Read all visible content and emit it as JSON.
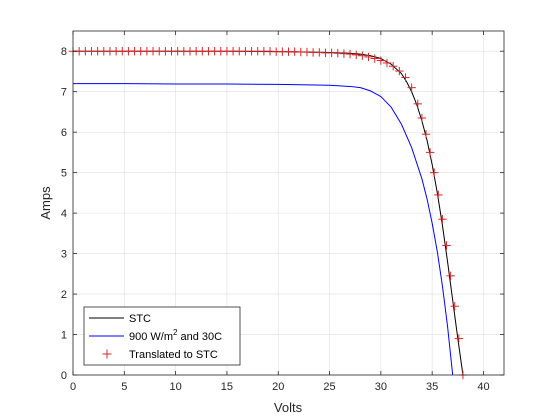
{
  "chart_data": {
    "type": "line",
    "title": "",
    "xlabel": "Volts",
    "ylabel": "Amps",
    "xlim": [
      0,
      42
    ],
    "ylim": [
      0,
      8.5
    ],
    "xticks": [
      0,
      5,
      10,
      15,
      20,
      25,
      30,
      35,
      40
    ],
    "yticks": [
      0,
      1,
      2,
      3,
      4,
      5,
      6,
      7,
      8
    ],
    "grid": true,
    "legend_position": "bottom-left",
    "series": [
      {
        "name": "STC",
        "style": "line",
        "color": "#000000",
        "x": [
          0,
          5,
          10,
          15,
          20,
          25,
          27,
          28,
          29,
          30,
          31,
          32,
          32.5,
          33,
          33.5,
          34,
          34.5,
          35,
          35.5,
          36,
          36.5,
          37,
          37.5,
          38
        ],
        "y": [
          8.0,
          8.0,
          8.0,
          8.0,
          7.99,
          7.97,
          7.95,
          7.93,
          7.89,
          7.82,
          7.68,
          7.45,
          7.25,
          7.0,
          6.68,
          6.28,
          5.8,
          5.2,
          4.5,
          3.7,
          2.8,
          1.85,
          0.9,
          0.0
        ]
      },
      {
        "name_prefix": "900 W/m",
        "name_sup": "2",
        "name_suffix": " and 30C",
        "style": "line",
        "color": "#0000ff",
        "x": [
          0,
          5,
          10,
          15,
          20,
          25,
          27,
          28,
          29,
          30,
          31,
          32,
          33,
          34,
          34.5,
          35,
          35.5,
          36,
          36.5,
          37
        ],
        "y": [
          7.2,
          7.2,
          7.19,
          7.19,
          7.18,
          7.16,
          7.13,
          7.1,
          7.02,
          6.88,
          6.62,
          6.2,
          5.62,
          4.85,
          4.35,
          3.75,
          3.05,
          2.2,
          1.2,
          0.0
        ]
      },
      {
        "name": "Translated to STC",
        "style": "marker",
        "marker": "+",
        "color": "#d62728",
        "x": [
          0,
          0.6,
          1.2,
          1.8,
          2.4,
          3.0,
          3.6,
          4.2,
          4.8,
          5.4,
          6.0,
          6.6,
          7.2,
          7.8,
          8.4,
          9.0,
          9.6,
          10.2,
          10.8,
          11.4,
          12.0,
          12.6,
          13.2,
          13.8,
          14.4,
          15.0,
          15.6,
          16.2,
          16.8,
          17.4,
          18.0,
          18.6,
          19.2,
          19.8,
          20.4,
          21.0,
          21.6,
          22.2,
          22.8,
          23.4,
          24.0,
          24.6,
          25.2,
          25.8,
          26.4,
          27.0,
          27.6,
          28.2,
          28.8,
          29.4,
          30.0,
          30.6,
          31.2,
          31.8,
          32.4,
          33.0,
          33.6,
          34.0,
          34.4,
          34.8,
          35.2,
          35.6,
          36.0,
          36.4,
          36.8,
          37.2,
          37.6,
          38.0
        ],
        "y": [
          8.0,
          8.0,
          8.0,
          8.0,
          8.0,
          8.0,
          8.0,
          8.0,
          8.0,
          8.0,
          8.0,
          8.0,
          8.0,
          8.0,
          8.0,
          8.0,
          8.0,
          8.0,
          8.0,
          8.0,
          8.0,
          8.0,
          8.0,
          8.0,
          8.0,
          8.0,
          8.0,
          8.0,
          8.0,
          8.0,
          8.0,
          8.0,
          8.0,
          7.99,
          7.99,
          7.99,
          7.99,
          7.98,
          7.98,
          7.97,
          7.97,
          7.96,
          7.96,
          7.95,
          7.94,
          7.93,
          7.91,
          7.89,
          7.86,
          7.82,
          7.77,
          7.71,
          7.63,
          7.51,
          7.35,
          7.1,
          6.7,
          6.35,
          5.95,
          5.5,
          5.0,
          4.45,
          3.85,
          3.2,
          2.45,
          1.7,
          0.9,
          0.0
        ]
      }
    ]
  }
}
